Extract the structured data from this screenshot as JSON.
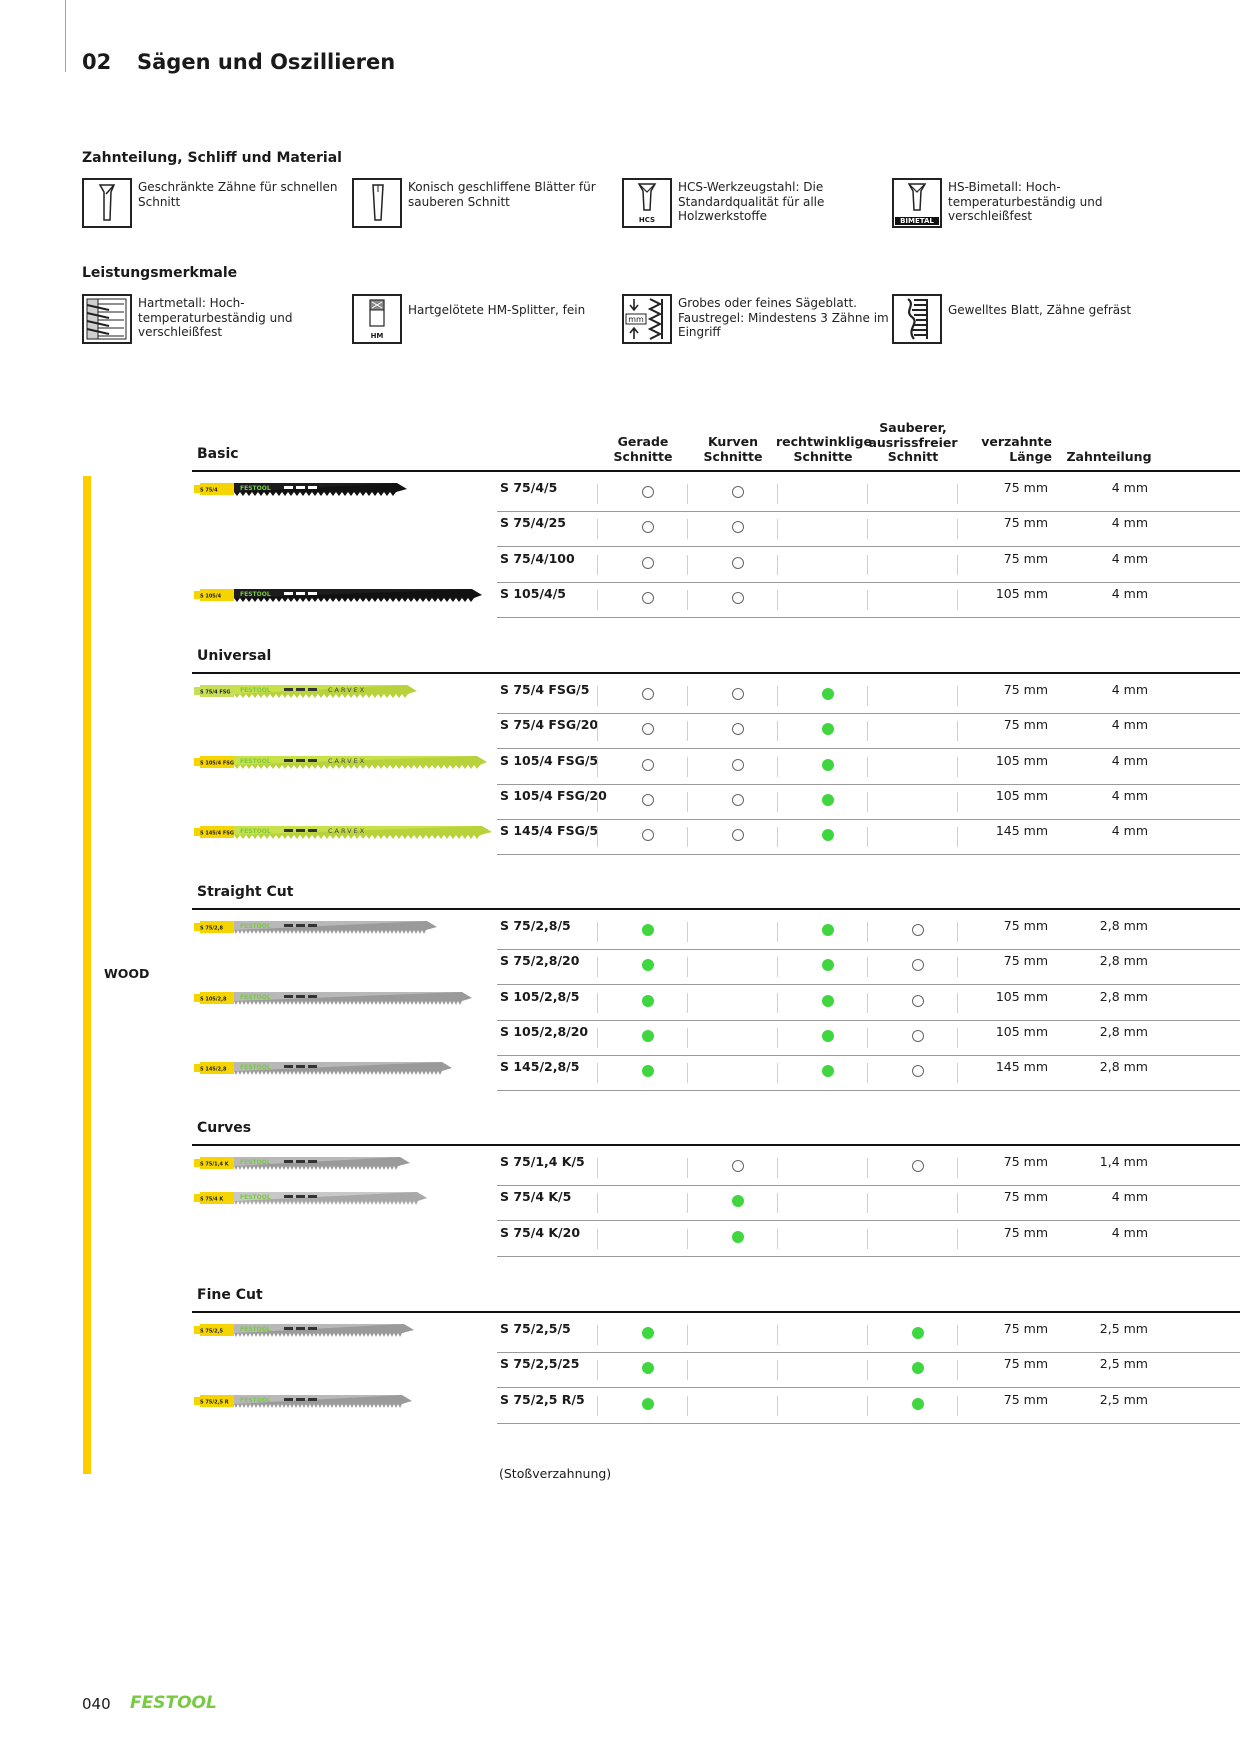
{
  "chapter": {
    "number": "02",
    "title": "Sägen und Oszillieren"
  },
  "section1": {
    "title": "Zahnteilung, Schliff und Material",
    "items": [
      {
        "icon": "set-teeth-icon",
        "text": "Geschränkte Zähne für schnellen Schnitt"
      },
      {
        "icon": "taper-ground-icon",
        "text": "Konisch geschliffene Blätter für sauberen Schnitt"
      },
      {
        "icon": "hcs-steel-icon",
        "label": "HCS",
        "text": "HCS-Werkzeugstahl: Die Standardqualität für alle Holzwerkstoffe"
      },
      {
        "icon": "bimetal-icon",
        "label": "BIMETAL",
        "text": "HS-Bimetall: Hoch-temperaturbeständig und verschleißfest"
      }
    ]
  },
  "section2": {
    "title": "Leistungsmerkmale",
    "items": [
      {
        "icon": "carbide-icon",
        "text": "Hartmetall: Hoch-temperaturbeständig und verschleißfest"
      },
      {
        "icon": "hm-tipped-icon",
        "label": "HM",
        "text": "Hartgelötete HM-Splitter, fein"
      },
      {
        "icon": "tooth-pitch-icon",
        "label": "mm",
        "text": "Grobes oder feines Sägeblatt. Faustregel: Mindestens 3 Zähne im Eingriff"
      },
      {
        "icon": "wavy-blade-icon",
        "text": "Gewelltes Blatt, Zähne gefräst"
      }
    ]
  },
  "columns": {
    "straight": "Gerade Schnitte",
    "curves": "Kurven Schnitte",
    "square": "rechtwinklige Schnitte",
    "clean": "Sauberer, ausrissfreier Schnitt",
    "length": "verzahnte Länge",
    "pitch": "Zahnteilung"
  },
  "material": "WOOD",
  "groups": [
    {
      "title": "Basic",
      "rows": [
        {
          "code": "S 75/4/5",
          "marks": [
            "open",
            "open",
            "",
            ""
          ],
          "length": "75 mm",
          "pitch": "4 mm"
        },
        {
          "code": "S 75/4/25",
          "marks": [
            "open",
            "open",
            "",
            ""
          ],
          "length": "75 mm",
          "pitch": "4 mm"
        },
        {
          "code": "S 75/4/100",
          "marks": [
            "open",
            "open",
            "",
            ""
          ],
          "length": "75 mm",
          "pitch": "4 mm"
        },
        {
          "code": "S 105/4/5",
          "marks": [
            "open",
            "open",
            "",
            ""
          ],
          "length": "105 mm",
          "pitch": "4 mm"
        }
      ]
    },
    {
      "title": "Universal",
      "rows": [
        {
          "code": "S 75/4 FSG/5",
          "marks": [
            "open",
            "open",
            "filled",
            ""
          ],
          "length": "75 mm",
          "pitch": "4 mm"
        },
        {
          "code": "S 75/4 FSG/20",
          "marks": [
            "open",
            "open",
            "filled",
            ""
          ],
          "length": "75 mm",
          "pitch": "4 mm"
        },
        {
          "code": "S 105/4 FSG/5",
          "marks": [
            "open",
            "open",
            "filled",
            ""
          ],
          "length": "105 mm",
          "pitch": "4 mm"
        },
        {
          "code": "S 105/4 FSG/20",
          "marks": [
            "open",
            "open",
            "filled",
            ""
          ],
          "length": "105 mm",
          "pitch": "4 mm"
        },
        {
          "code": "S 145/4 FSG/5",
          "marks": [
            "open",
            "open",
            "filled",
            ""
          ],
          "length": "145 mm",
          "pitch": "4 mm"
        }
      ]
    },
    {
      "title": "Straight Cut",
      "rows": [
        {
          "code": "S 75/2,8/5",
          "marks": [
            "filled",
            "",
            "filled",
            "open"
          ],
          "length": "75 mm",
          "pitch": "2,8 mm"
        },
        {
          "code": "S 75/2,8/20",
          "marks": [
            "filled",
            "",
            "filled",
            "open"
          ],
          "length": "75 mm",
          "pitch": "2,8 mm"
        },
        {
          "code": "S 105/2,8/5",
          "marks": [
            "filled",
            "",
            "filled",
            "open"
          ],
          "length": "105 mm",
          "pitch": "2,8 mm"
        },
        {
          "code": "S 105/2,8/20",
          "marks": [
            "filled",
            "",
            "filled",
            "open"
          ],
          "length": "105 mm",
          "pitch": "2,8 mm"
        },
        {
          "code": "S 145/2,8/5",
          "marks": [
            "filled",
            "",
            "filled",
            "open"
          ],
          "length": "145 mm",
          "pitch": "2,8 mm"
        }
      ]
    },
    {
      "title": "Curves",
      "rows": [
        {
          "code": "S 75/1,4 K/5",
          "marks": [
            "",
            "open",
            "",
            "open"
          ],
          "length": "75 mm",
          "pitch": "1,4 mm"
        },
        {
          "code": "S 75/4 K/5",
          "marks": [
            "",
            "filled",
            "",
            ""
          ],
          "length": "75 mm",
          "pitch": "4 mm"
        },
        {
          "code": "S 75/4 K/20",
          "marks": [
            "",
            "filled",
            "",
            ""
          ],
          "length": "75 mm",
          "pitch": "4 mm"
        }
      ]
    },
    {
      "title": "Fine Cut",
      "rows": [
        {
          "code": "S 75/2,5/5",
          "marks": [
            "filled",
            "",
            "",
            "filled"
          ],
          "length": "75 mm",
          "pitch": "2,5 mm"
        },
        {
          "code": "S 75/2,5/25",
          "marks": [
            "filled",
            "",
            "",
            "filled"
          ],
          "length": "75 mm",
          "pitch": "2,5 mm"
        },
        {
          "code": "S 75/2,5 R/5",
          "marks": [
            "filled",
            "",
            "",
            "filled"
          ],
          "length": "75 mm",
          "pitch": "2,5 mm"
        }
      ]
    }
  ],
  "blades": [
    {
      "label": "S 75/4",
      "brand": "FESTOOL",
      "style": "basic",
      "colors": {
        "shank": "#f5d400",
        "body": "#1c1c1c",
        "teeth": "#111111"
      }
    },
    {
      "label": "S 105/4",
      "brand": "FESTOOL",
      "style": "basic",
      "colors": {
        "shank": "#f5d400",
        "body": "#1c1c1c",
        "teeth": "#111111"
      }
    },
    {
      "label": "S 75/4 FSG",
      "brand": "FESTOOL",
      "word": "CARVEX",
      "style": "universal",
      "colors": {
        "shank": "#c6de5a",
        "body": "#c8e04a",
        "teeth": "#b7d23a"
      }
    },
    {
      "label": "S 105/4 FSG",
      "brand": "FESTOOL",
      "word": "CARVEX",
      "style": "universal",
      "colors": {
        "shank": "#f5d400",
        "body": "#c8e04a",
        "teeth": "#b7d23a"
      }
    },
    {
      "label": "S 145/4 FSG",
      "brand": "FESTOOL",
      "word": "CARVEX",
      "style": "universal",
      "colors": {
        "shank": "#f5d400",
        "body": "#c8e04a",
        "teeth": "#b7d23a"
      }
    },
    {
      "label": "S 75/2,8",
      "brand": "FESTOOL",
      "style": "steel",
      "colors": {
        "shank": "#f5d400",
        "body": "#b8b8b8",
        "teeth": "#9a9a9a"
      }
    },
    {
      "label": "S 105/2,8",
      "brand": "FESTOOL",
      "style": "steel",
      "colors": {
        "shank": "#f5d400",
        "body": "#b8b8b8",
        "teeth": "#9a9a9a"
      }
    },
    {
      "label": "S 145/2,8",
      "brand": "FESTOOL",
      "style": "steel",
      "colors": {
        "shank": "#f5d400",
        "body": "#b8b8b8",
        "teeth": "#9a9a9a"
      }
    },
    {
      "label": "S 75/1,4 K",
      "brand": "FESTOOL",
      "style": "steel",
      "colors": {
        "shank": "#f5d400",
        "body": "#b8b8b8",
        "teeth": "#9a9a9a"
      }
    },
    {
      "label": "S 75/4 K",
      "brand": "FESTOOL",
      "style": "steel",
      "colors": {
        "shank": "#f5d400",
        "body": "#c8c8c8",
        "teeth": "#a8a8a8"
      }
    },
    {
      "label": "S 75/2,5",
      "brand": "FESTOOL",
      "style": "steel",
      "colors": {
        "shank": "#f5d400",
        "body": "#b8b8b8",
        "teeth": "#9a9a9a"
      }
    },
    {
      "label": "S 75/2,5 R",
      "brand": "FESTOOL",
      "style": "steel",
      "colors": {
        "shank": "#f5d400",
        "body": "#b8b8b8",
        "teeth": "#9a9a9a"
      }
    }
  ],
  "note": "(Stoßverzahnung)",
  "footer": {
    "page": "040",
    "brand": "FESTOOL"
  },
  "colors": {
    "accent": "#ffcc00",
    "mark_filled": "#3fd63f",
    "brand_green": "#7ac943"
  }
}
